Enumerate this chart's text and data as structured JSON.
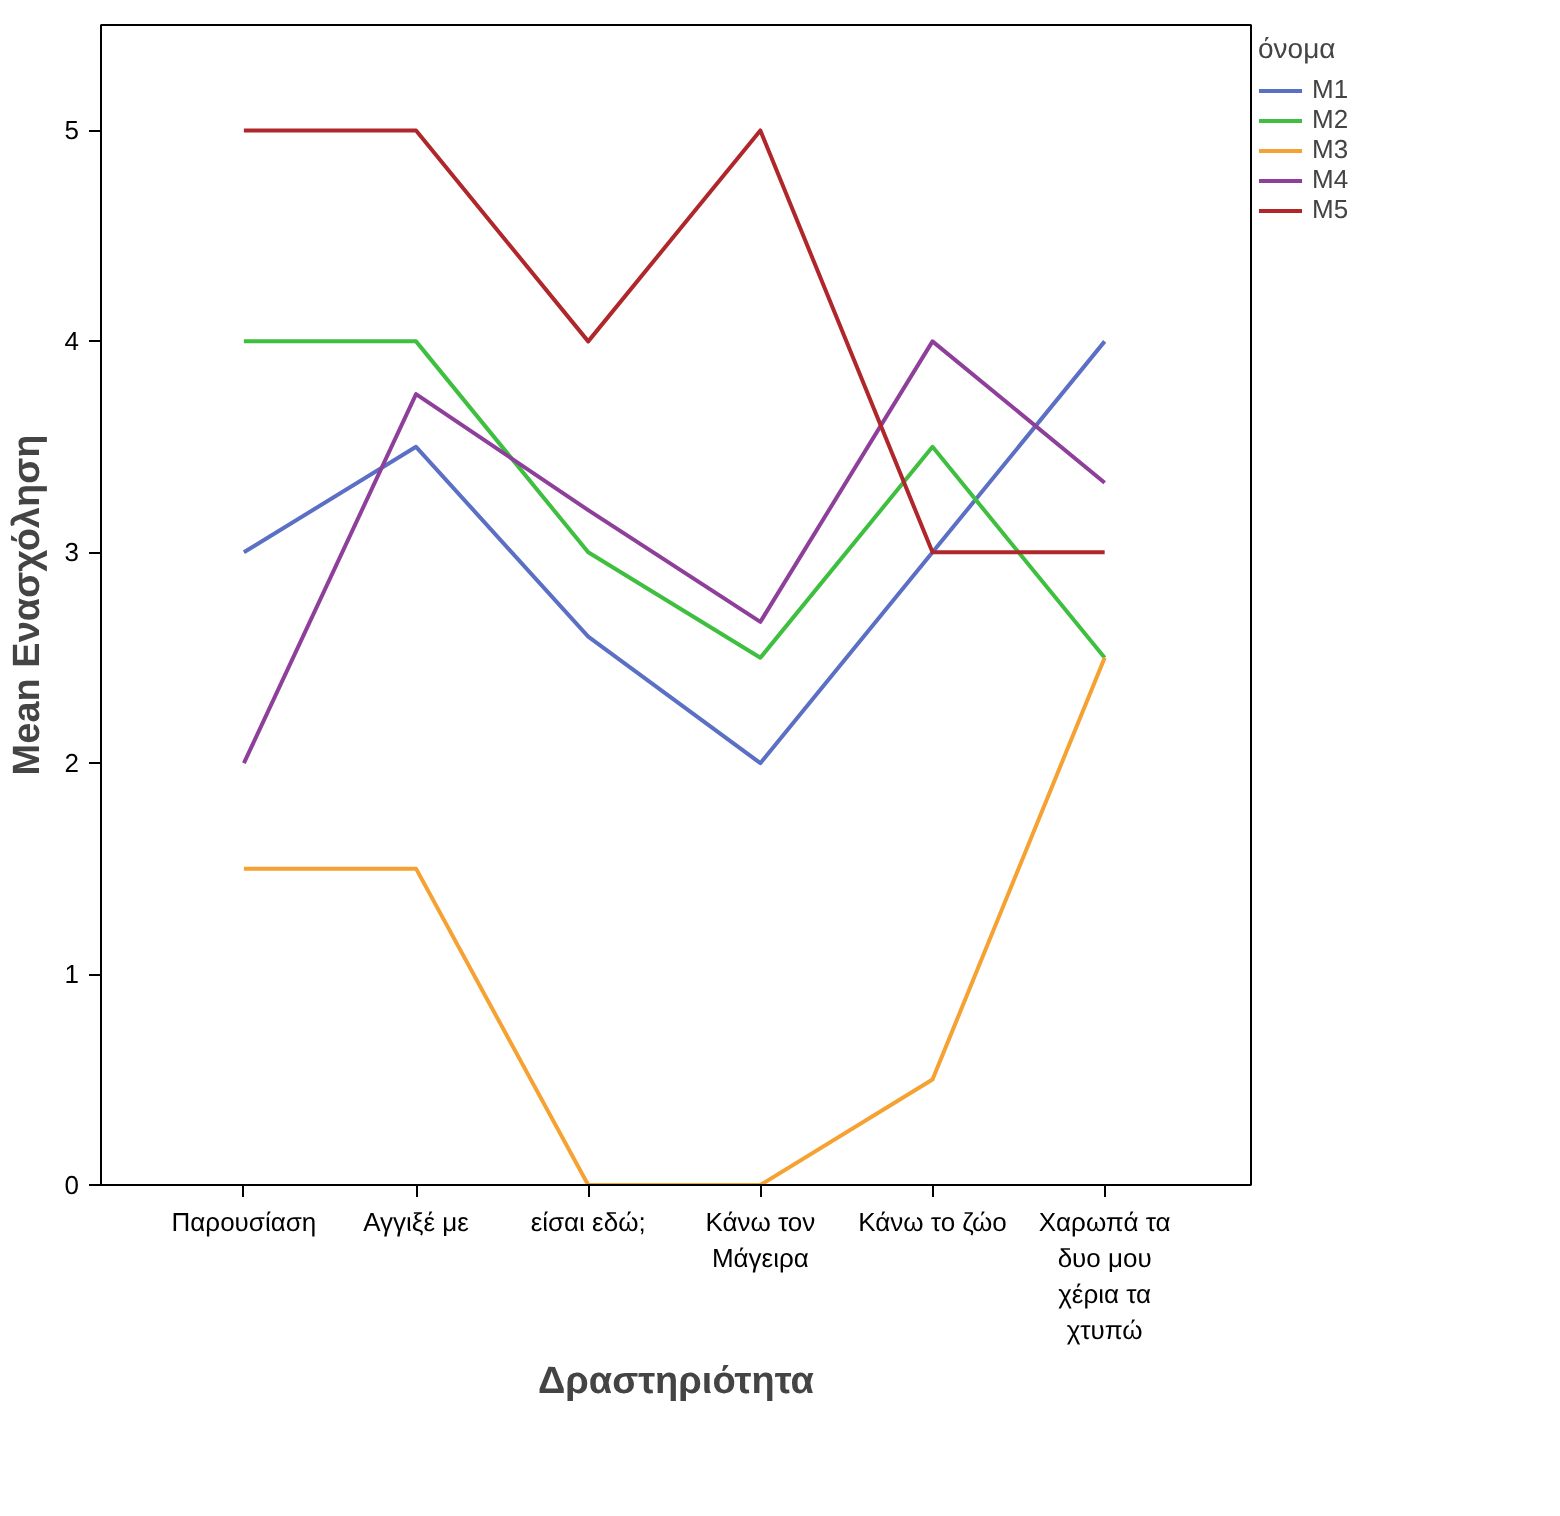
{
  "chart_data": {
    "type": "line",
    "xlabel": "Δραστηριότητα",
    "ylabel": "Mean Ενασχόληση",
    "legend_title": "όνομα",
    "categories": [
      "Παρουσίαση",
      "Αγγιξέ με",
      "είσαι εδώ;",
      "Κάνω τον Μάγειρα",
      "Κάνω το ζώο",
      "Χαρωπά τα δυο μου χέρια τα χτυπώ"
    ],
    "series": [
      {
        "name": "M1",
        "color": "#5b6fc4",
        "values": [
          3,
          3.5,
          2.6,
          2,
          3,
          4
        ]
      },
      {
        "name": "M2",
        "color": "#3fbf3f",
        "values": [
          4,
          4,
          3,
          2.5,
          3.5,
          2.5
        ]
      },
      {
        "name": "M3",
        "color": "#f5a233",
        "values": [
          1.5,
          1.5,
          0,
          0,
          0.5,
          2.5
        ]
      },
      {
        "name": "M4",
        "color": "#8e3f9a",
        "values": [
          2,
          3.75,
          3.2,
          2.67,
          4,
          3.33
        ]
      },
      {
        "name": "M5",
        "color": "#b0272b",
        "values": [
          5,
          5,
          4,
          5,
          3,
          3
        ]
      }
    ],
    "ylim": [
      0,
      5.5
    ],
    "yticks": [
      0,
      1,
      2,
      3,
      4,
      5
    ],
    "grid": false,
    "legend": "top right",
    "marker": "none",
    "line_style": "solid"
  }
}
